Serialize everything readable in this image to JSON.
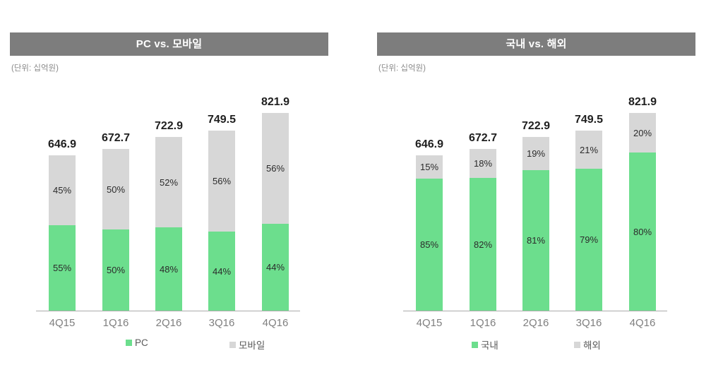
{
  "colors": {
    "primary_green": "#6cde8d",
    "secondary_gray": "#d7d7d7",
    "title_bar_bg": "#7d7d7d",
    "axis_line": "#ababab"
  },
  "chart_data": [
    {
      "type": "bar",
      "stacked": true,
      "title": "PC vs. 모바일",
      "unit": "(단위: 십억원)",
      "categories": [
        "4Q15",
        "1Q16",
        "2Q16",
        "3Q16",
        "4Q16"
      ],
      "totals": [
        646.9,
        672.7,
        722.9,
        749.5,
        821.9
      ],
      "total_labels": [
        "646.9",
        "672.7",
        "722.9",
        "749.5",
        "821.9"
      ],
      "series": [
        {
          "name": "PC",
          "color": "#6cde8d",
          "values": [
            55,
            50,
            48,
            44,
            44
          ],
          "value_labels": [
            "55%",
            "50%",
            "48%",
            "44%",
            "44%"
          ]
        },
        {
          "name": "모바일",
          "color": "#d7d7d7",
          "values": [
            45,
            50,
            52,
            56,
            56
          ],
          "value_labels": [
            "45%",
            "50%",
            "52%",
            "56%",
            "56%"
          ]
        }
      ],
      "legend": [
        "PC",
        "모바일"
      ],
      "legend_position": "bottom",
      "grid": false,
      "ylim": [
        0,
        821.9
      ]
    },
    {
      "type": "bar",
      "stacked": true,
      "title": "국내 vs. 해외",
      "unit": "(단위: 십억원)",
      "categories": [
        "4Q15",
        "1Q16",
        "2Q16",
        "3Q16",
        "4Q16"
      ],
      "totals": [
        646.9,
        672.7,
        722.9,
        749.5,
        821.9
      ],
      "total_labels": [
        "646.9",
        "672.7",
        "722.9",
        "749.5",
        "821.9"
      ],
      "series": [
        {
          "name": "국내",
          "color": "#6cde8d",
          "values": [
            85,
            82,
            81,
            79,
            80
          ],
          "value_labels": [
            "85%",
            "82%",
            "81%",
            "79%",
            "80%"
          ]
        },
        {
          "name": "해외",
          "color": "#d7d7d7",
          "values": [
            15,
            18,
            19,
            21,
            20
          ],
          "value_labels": [
            "15%",
            "18%",
            "19%",
            "21%",
            "20%"
          ]
        }
      ],
      "legend": [
        "국내",
        "해외"
      ],
      "legend_position": "bottom",
      "grid": false,
      "ylim": [
        0,
        821.9
      ]
    }
  ]
}
